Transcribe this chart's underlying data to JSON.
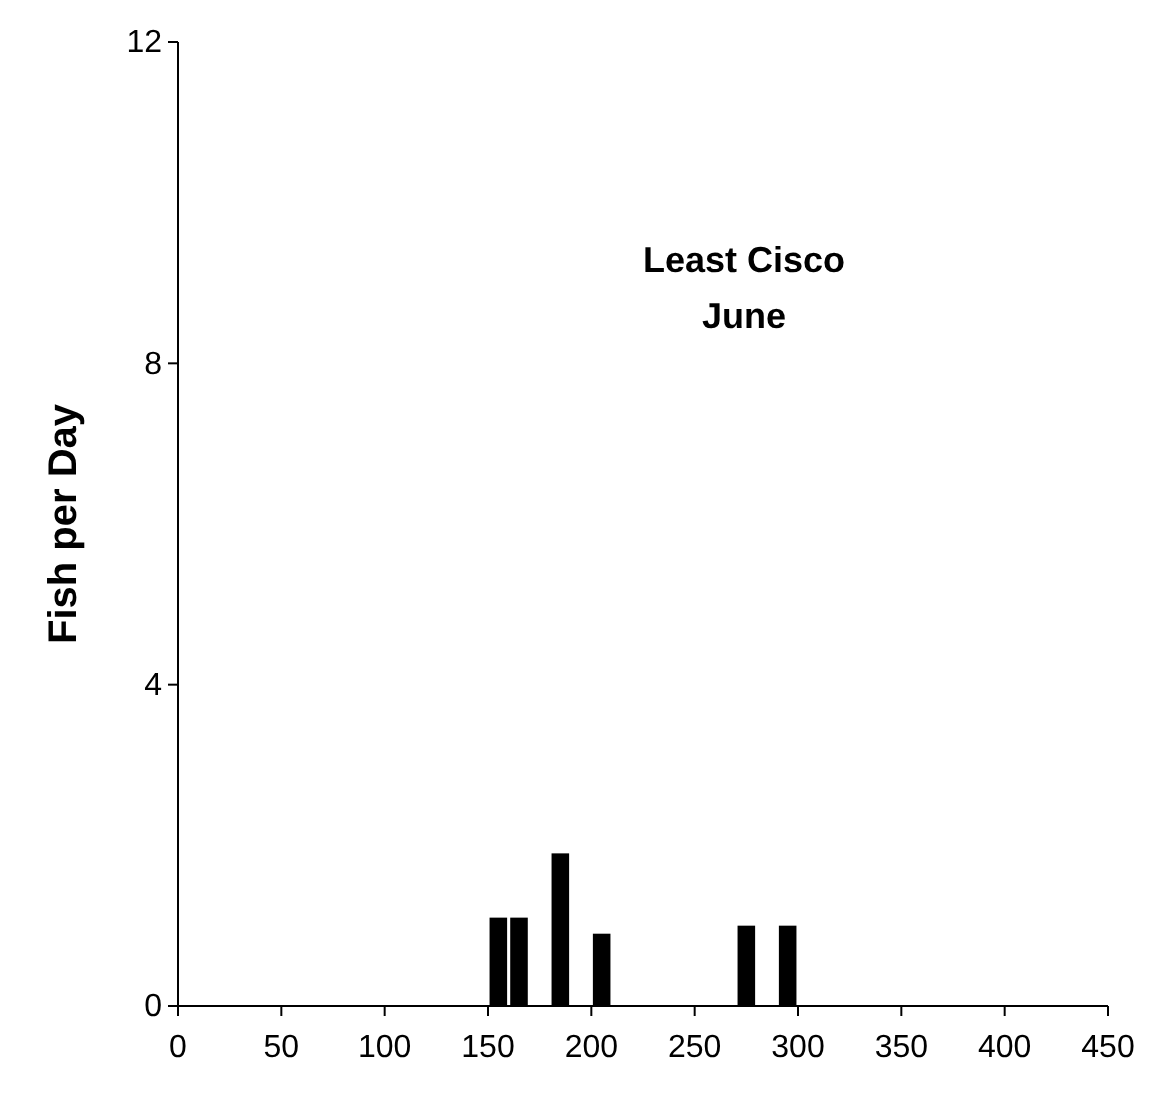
{
  "chart_data": {
    "type": "bar",
    "title": "Least Cisco",
    "subtitle": "June",
    "ylabel": "Fish per Day",
    "x": [
      155,
      165,
      185,
      205,
      275,
      295
    ],
    "values": [
      1.1,
      1.1,
      1.9,
      0.9,
      1.0,
      1.0
    ],
    "color": "#000000",
    "xlim": [
      0,
      450
    ],
    "xticks": [
      0,
      50,
      100,
      150,
      200,
      250,
      300,
      350,
      400,
      450
    ],
    "ylim": [
      0,
      12
    ],
    "yticks": [
      0,
      4,
      8,
      12
    ],
    "grid": false
  }
}
